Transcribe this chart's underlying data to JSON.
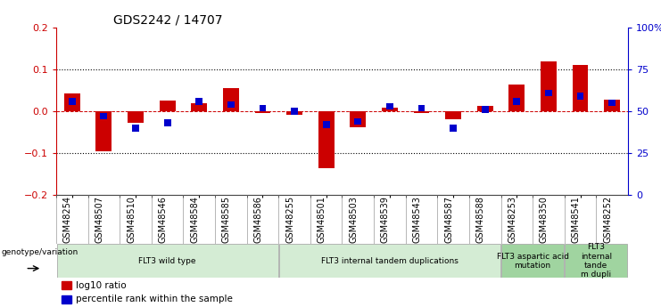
{
  "title": "GDS2242 / 14707",
  "samples": [
    "GSM48254",
    "GSM48507",
    "GSM48510",
    "GSM48546",
    "GSM48584",
    "GSM48585",
    "GSM48586",
    "GSM48255",
    "GSM48501",
    "GSM48503",
    "GSM48539",
    "GSM48543",
    "GSM48587",
    "GSM48588",
    "GSM48253",
    "GSM48350",
    "GSM48541",
    "GSM48252"
  ],
  "log10_ratio": [
    0.043,
    -0.095,
    -0.028,
    0.025,
    0.02,
    0.055,
    -0.005,
    -0.008,
    -0.135,
    -0.038,
    0.008,
    -0.005,
    -0.018,
    0.012,
    0.065,
    0.12,
    0.11,
    0.028
  ],
  "percentile_rank_raw": [
    56,
    47,
    40,
    43,
    56,
    54,
    52,
    50,
    42,
    44,
    53,
    52,
    40,
    51,
    56,
    61,
    59,
    55
  ],
  "ylim_left": [
    -0.2,
    0.2
  ],
  "ylim_right": [
    0,
    100
  ],
  "yticks_left": [
    -0.2,
    -0.1,
    0.0,
    0.1,
    0.2
  ],
  "yticks_right": [
    0,
    25,
    50,
    75,
    100
  ],
  "ytick_labels_right": [
    "0",
    "25",
    "50",
    "75",
    "100%"
  ],
  "dotted_lines": [
    -0.1,
    0.1
  ],
  "red_color": "#cc0000",
  "blue_color": "#0000cc",
  "groups": [
    {
      "label": "FLT3 wild type",
      "start": 0,
      "end": 6,
      "color": "#d4ecd4"
    },
    {
      "label": "FLT3 internal tandem duplications",
      "start": 7,
      "end": 13,
      "color": "#d4ecd4"
    },
    {
      "label": "FLT3 aspartic acid\nmutation",
      "start": 14,
      "end": 15,
      "color": "#a0d4a0"
    },
    {
      "label": "FLT3\ninternal\ntande\nm dupli",
      "start": 16,
      "end": 17,
      "color": "#a0d4a0"
    }
  ],
  "legend_label_red": "log10 ratio",
  "legend_label_blue": "percentile rank within the sample",
  "genotype_label": "genotype/variation"
}
